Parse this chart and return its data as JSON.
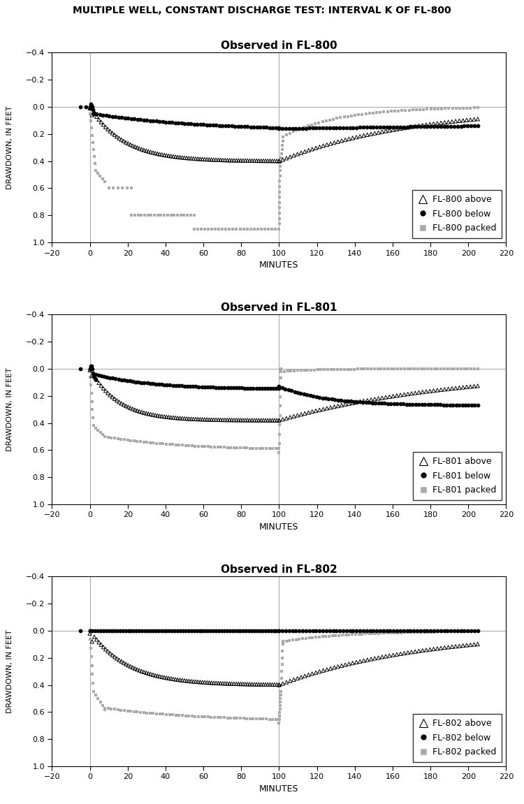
{
  "title": "MULTIPLE WELL, CONSTANT DISCHARGE TEST: INTERVAL K OF FL-800",
  "subplots": [
    {
      "title": "Observed in FL-800",
      "legend_labels": [
        "FL-800 above",
        "FL-800 below",
        "FL-800 packed"
      ]
    },
    {
      "title": "Observed in FL-801",
      "legend_labels": [
        "FL-801 above",
        "FL-801 below",
        "FL-801 packed"
      ]
    },
    {
      "title": "Observed in FL-802",
      "legend_labels": [
        "FL-802 above",
        "FL-802 below",
        "FL-802 packed"
      ]
    }
  ],
  "xlabel": "MINUTES",
  "ylabel": "DRAWDOWN, IN FEET",
  "xlim": [
    -20,
    220
  ],
  "ylim": [
    1.0,
    -0.4
  ],
  "xticks": [
    -20,
    0,
    20,
    40,
    60,
    80,
    100,
    120,
    140,
    160,
    180,
    200,
    220
  ],
  "yticks": [
    -0.4,
    -0.2,
    0.0,
    0.2,
    0.4,
    0.6,
    0.8,
    1.0
  ],
  "color_above": "#000000",
  "color_below": "#000000",
  "color_packed": "#aaaaaa",
  "marker_above": "^",
  "marker_below": "o",
  "marker_packed": "s"
}
